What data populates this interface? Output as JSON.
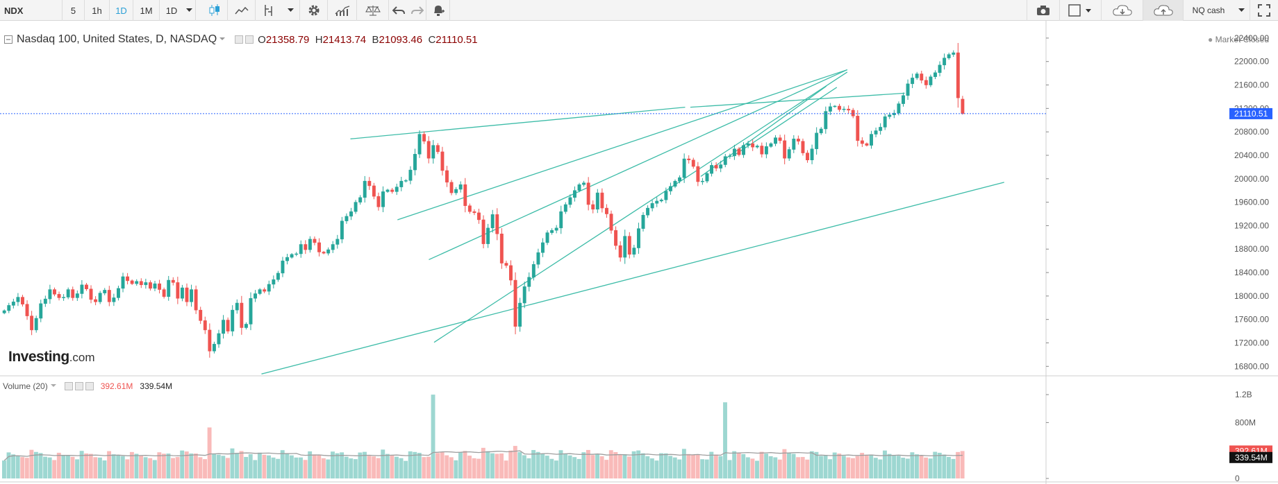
{
  "toolbar": {
    "symbol": "NDX",
    "intervals": [
      "5",
      "1h",
      "1D",
      "1M",
      "1D"
    ],
    "active_interval_index": 2,
    "contract": "NQ cash",
    "accent_color": "#2a9fd6"
  },
  "legend": {
    "title": "Nasdaq 100, United States, D, NASDAQ",
    "open_label": "O",
    "open": "21358.79",
    "high_label": "H",
    "high": "21413.74",
    "low_label": "B",
    "low": "21093.46",
    "close_label": "C",
    "close": "21110.51",
    "market_status": "Market Closed"
  },
  "volume_legend": {
    "title": "Volume (20)",
    "volume": "392.61M",
    "ma": "339.54M"
  },
  "branding": {
    "brand": "Investing",
    "domain": ".com"
  },
  "chart_data": {
    "type": "candlestick",
    "symbol": "NDX",
    "title": "Nasdaq 100, United States, D, NASDAQ",
    "interval": "D",
    "price_axis": {
      "range": [
        16650,
        22600
      ],
      "ticks": [
        "16800.00",
        "17200.00",
        "17600.00",
        "18000.00",
        "18400.00",
        "18800.00",
        "19200.00",
        "19600.00",
        "20000.00",
        "20400.00",
        "20800.00",
        "21200.00",
        "21600.00",
        "22000.00",
        "22400.00"
      ]
    },
    "last_price": 21110.51,
    "last_price_label": "21110.51",
    "colors": {
      "up": "#26a69a",
      "down": "#ef5350",
      "trendline": "#3dbca8",
      "price_line": "#2962ff"
    },
    "close_series": [
      17750,
      17840,
      17900,
      17980,
      17860,
      17660,
      17420,
      17620,
      17870,
      17950,
      18110,
      18030,
      17970,
      17980,
      18110,
      17970,
      18040,
      18190,
      18120,
      17940,
      17900,
      18050,
      18100,
      17900,
      17970,
      18130,
      18330,
      18260,
      18210,
      18250,
      18190,
      18230,
      18130,
      18210,
      18110,
      17990,
      18270,
      18230,
      17960,
      18140,
      17900,
      18110,
      17760,
      17580,
      17420,
      17060,
      17180,
      17360,
      17590,
      17400,
      17760,
      17880,
      17460,
      17520,
      17960,
      18040,
      18110,
      18080,
      18200,
      18280,
      18390,
      18600,
      18660,
      18710,
      18720,
      18880,
      18790,
      18970,
      18910,
      18750,
      18730,
      18790,
      18880,
      18970,
      19280,
      19360,
      19440,
      19600,
      19680,
      19960,
      19880,
      19700,
      19520,
      19780,
      19810,
      19780,
      19860,
      19960,
      19970,
      20150,
      20420,
      20760,
      20640,
      20350,
      20570,
      20460,
      20140,
      19940,
      19760,
      19820,
      19900,
      19540,
      19440,
      19420,
      19300,
      18890,
      19160,
      19390,
      19060,
      18560,
      18520,
      18270,
      17480,
      17880,
      18160,
      18320,
      18540,
      18740,
      18910,
      19080,
      19120,
      19160,
      19440,
      19560,
      19680,
      19800,
      19900,
      19930,
      19560,
      19480,
      19760,
      19500,
      19400,
      19120,
      18860,
      18660,
      19020,
      18710,
      18820,
      19150,
      19380,
      19500,
      19580,
      19620,
      19640,
      19790,
      19870,
      19960,
      20020,
      20340,
      20320,
      20210,
      19950,
      19960,
      20090,
      20230,
      20180,
      20240,
      20380,
      20390,
      20510,
      20410,
      20570,
      20600,
      20540,
      20560,
      20420,
      20550,
      20600,
      20700,
      20650,
      20350,
      20500,
      20680,
      20640,
      20440,
      20320,
      20510,
      20780,
      20850,
      21150,
      21230,
      21240,
      21180,
      21190,
      21170,
      21070,
      20650,
      20600,
      20570,
      20760,
      20820,
      20880,
      21060,
      21090,
      21120,
      21280,
      21420,
      21620,
      21720,
      21790,
      21680,
      21600,
      21740,
      21810,
      21940,
      22060,
      22120,
      22150,
      21380,
      21110.51
    ],
    "last_bar": {
      "open": 21358.79,
      "high": 21413.74,
      "low": 21093.46,
      "close": 21110.51
    },
    "trendlines": [
      {
        "from": [
          0.335,
          20680
        ],
        "to": [
          0.655,
          21220
        ]
      },
      {
        "from": [
          0.38,
          19300
        ],
        "to": [
          0.81,
          21860
        ]
      },
      {
        "from": [
          0.41,
          18620
        ],
        "to": [
          0.81,
          21860
        ]
      },
      {
        "from": [
          0.415,
          17210
        ],
        "to": [
          0.81,
          21820
        ]
      },
      {
        "from": [
          0.25,
          16670
        ],
        "to": [
          0.96,
          19940
        ]
      },
      {
        "from": [
          0.66,
          21220
        ],
        "to": [
          0.865,
          21460
        ]
      },
      {
        "from": [
          0.67,
          20040
        ],
        "to": [
          0.79,
          21580
        ]
      },
      {
        "from": [
          0.7,
          20380
        ],
        "to": [
          0.8,
          21560
        ]
      }
    ],
    "volume": {
      "axis_ticks": [
        "1.2B",
        "800M",
        "0"
      ],
      "range_millions": [
        0,
        1330
      ],
      "current_label": "392.61M",
      "ma_label": "339.54M",
      "current": 392.61,
      "ma": 339.54,
      "spikes_millions": [
        {
          "bar": 45,
          "value": 730
        },
        {
          "bar": 94,
          "value": 1200
        },
        {
          "bar": 158,
          "value": 1090
        }
      ]
    }
  }
}
